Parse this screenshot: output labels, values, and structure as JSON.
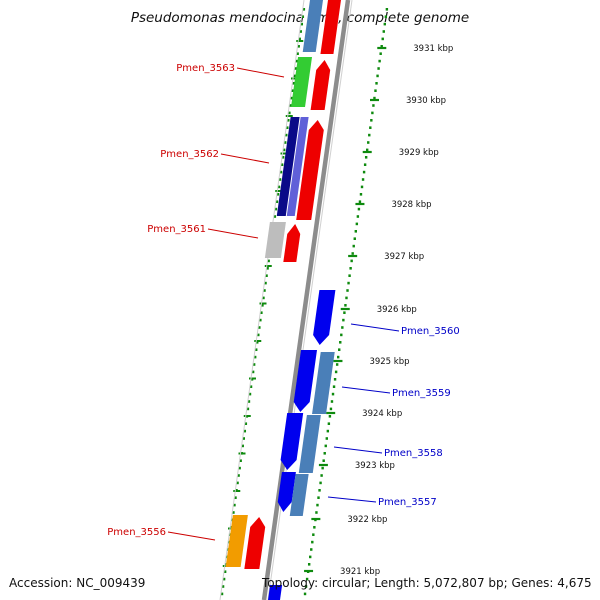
{
  "map": {
    "title": "Pseudomonas mendocina ymp, complete genome",
    "accession": "Accession: NC_009439",
    "topology": "Topology: circular; Length: 5,072,807 bp; Genes: 4,675",
    "colors": {
      "backbone": "#8c8c8c",
      "tick": "#0e8a0e",
      "label_reverse": "#cc0000",
      "label_forward": "#0000c8",
      "red": "#ee0000",
      "blue": "#0000ee",
      "steelblue": "#4a7fb8",
      "green": "#33cc33",
      "navy": "#0a0a88",
      "slate": "#6060d8",
      "silver": "#bdbdbd",
      "orange": "#f29c00"
    }
  },
  "scale_ticks": [
    {
      "label": "3931 kbp"
    },
    {
      "label": "3930 kbp"
    },
    {
      "label": "3929 kbp"
    },
    {
      "label": "3928 kbp"
    },
    {
      "label": "3927 kbp"
    },
    {
      "label": "3926 kbp"
    },
    {
      "label": "3925 kbp"
    },
    {
      "label": "3924 kbp"
    },
    {
      "label": "3923 kbp"
    },
    {
      "label": "3922 kbp"
    },
    {
      "label": "3921 kbp"
    }
  ],
  "gene_labels": [
    {
      "text": "Pmen_3563",
      "strand": "reverse"
    },
    {
      "text": "Pmen_3562",
      "strand": "reverse"
    },
    {
      "text": "Pmen_3561",
      "strand": "reverse"
    },
    {
      "text": "Pmen_3560",
      "strand": "forward"
    },
    {
      "text": "Pmen_3559",
      "strand": "forward"
    },
    {
      "text": "Pmen_3558",
      "strand": "forward"
    },
    {
      "text": "Pmen_3557",
      "strand": "forward"
    },
    {
      "text": "Pmen_3556",
      "strand": "reverse"
    }
  ]
}
